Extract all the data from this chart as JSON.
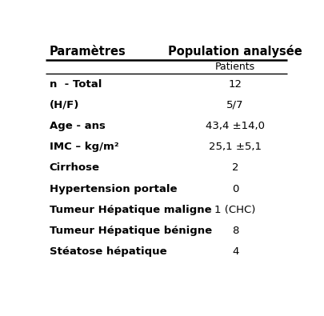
{
  "title_left": "Paramètres",
  "title_right": "Population analysée",
  "sub_header": "Patients",
  "rows": [
    {
      "param": "n  - Total",
      "value": "12"
    },
    {
      "param": "(H/F)",
      "value": "5/7"
    },
    {
      "param": "Age - ans",
      "value": "43,4 ±14,0"
    },
    {
      "param": "IMC – kg/m²",
      "value": "25,1 ±5,1"
    },
    {
      "param": "Cirrhose",
      "value": "2"
    },
    {
      "param": "Hypertension portale",
      "value": "0"
    },
    {
      "param": "Tumeur Hépatique maligne",
      "value": "1 (CHC)"
    },
    {
      "param": "Tumeur Hépatique bénigne",
      "value": "8"
    },
    {
      "param": "Stéatose hépatique",
      "value": "4"
    }
  ],
  "bg_color": "#ffffff",
  "line_color": "#000000",
  "font_size_header": 10.5,
  "font_size_body": 9.5,
  "font_size_subheader": 9.0
}
